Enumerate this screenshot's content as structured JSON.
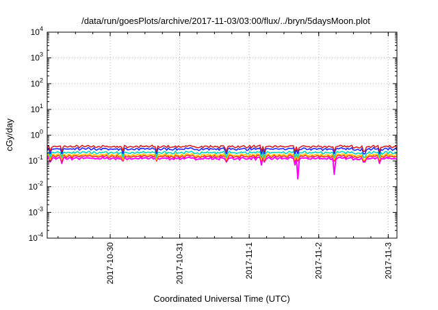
{
  "chart_data": {
    "type": "line",
    "title": "/data/run/goesPlots/archive/2017-11-03/03:00/flux/../bryn/5daysMoon.plot",
    "xlabel": "Coordinated Universal Time (UTC)",
    "ylabel": "cGy/day",
    "y_scale": "log",
    "ylim": [
      0.0001,
      10000
    ],
    "y_ticks": [
      {
        "base": "10",
        "exp": "-4",
        "value": 0.0001
      },
      {
        "base": "10",
        "exp": "-3",
        "value": 0.001
      },
      {
        "base": "10",
        "exp": "-2",
        "value": 0.01
      },
      {
        "base": "10",
        "exp": "-1",
        "value": 0.1
      },
      {
        "base": "10",
        "exp": "0",
        "value": 1
      },
      {
        "base": "10",
        "exp": "1",
        "value": 10
      },
      {
        "base": "10",
        "exp": "2",
        "value": 100
      },
      {
        "base": "10",
        "exp": "3",
        "value": 1000
      },
      {
        "base": "10",
        "exp": "4",
        "value": 10000
      }
    ],
    "x_range": [
      "2017-10-29T02:15",
      "2017-11-03T03:00"
    ],
    "x_ticks": [
      "2017-10-30",
      "2017-10-31",
      "2017-11-1",
      "2017-11-2",
      "2017-11-3"
    ],
    "x_tick_dates": [
      "2017-10-30T00:00",
      "2017-10-31T00:00",
      "2017-11-01T00:00",
      "2017-11-02T00:00",
      "2017-11-03T00:00"
    ],
    "grid": true,
    "series_colors": [
      "#ff00ff",
      "#ff2020",
      "#ffc000",
      "#00d4c0",
      "#2020ff",
      "#cc2020"
    ],
    "series_levels": [
      0.125,
      0.15,
      0.17,
      0.21,
      0.29,
      0.36
    ],
    "dips": [
      {
        "date": "2017-10-29T03:15",
        "depth": 0.09
      },
      {
        "date": "2017-10-29T07:30",
        "depth": 0.08
      },
      {
        "date": "2017-10-30T04:30",
        "depth": 0.1
      },
      {
        "date": "2017-10-30T16:00",
        "depth": 0.11
      },
      {
        "date": "2017-11-01T16:50",
        "depth": 0.02
      },
      {
        "date": "2017-10-31T16:00",
        "depth": 0.09
      },
      {
        "date": "2017-11-01T04:00",
        "depth": 0.07
      },
      {
        "date": "2017-11-01T05:00",
        "depth": 0.09
      },
      {
        "date": "2017-11-02T05:10",
        "depth": 0.03
      },
      {
        "date": "2017-11-01T16:00",
        "depth": 0.07
      },
      {
        "date": "2017-11-02T15:40",
        "depth": 0.09
      },
      {
        "date": "2017-11-02T21:00",
        "depth": 0.08
      }
    ]
  }
}
